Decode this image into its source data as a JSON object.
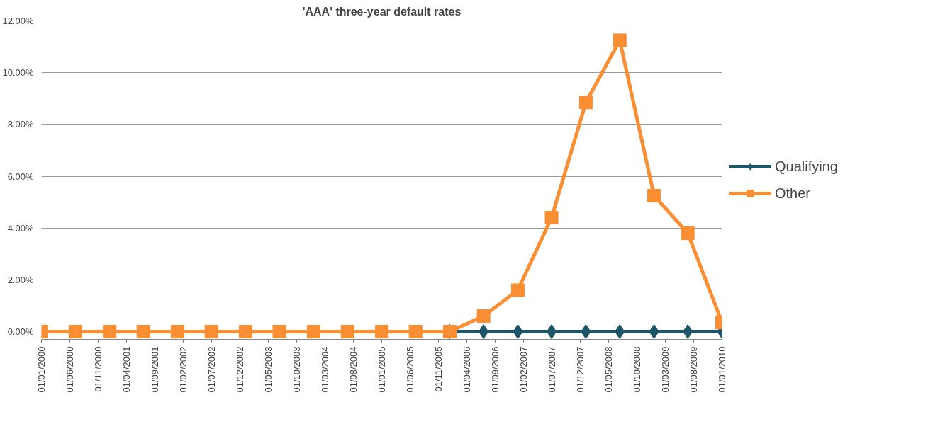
{
  "chart_data": {
    "type": "line",
    "title": "'AAA' three-year default rates",
    "x": [
      "2000-01-01",
      "2000-07-01",
      "2001-01-01",
      "2001-07-01",
      "2002-01-01",
      "2002-07-01",
      "2003-01-01",
      "2003-07-01",
      "2004-01-01",
      "2004-07-01",
      "2005-01-01",
      "2005-07-01",
      "2006-01-01",
      "2006-07-01",
      "2007-01-01",
      "2007-07-01",
      "2008-01-01",
      "2008-07-01",
      "2009-01-01",
      "2009-07-01",
      "2010-01-01"
    ],
    "series": [
      {
        "name": "Qualifying",
        "color": "#1f5568",
        "marker": "diamond",
        "values": [
          null,
          null,
          null,
          null,
          null,
          null,
          null,
          null,
          null,
          null,
          null,
          null,
          0,
          0,
          0,
          0,
          0,
          0,
          0,
          0,
          0
        ]
      },
      {
        "name": "Other",
        "color": "#f98e32",
        "marker": "square",
        "values": [
          0,
          0,
          0,
          0,
          0,
          0,
          0,
          0,
          0,
          0,
          0,
          0,
          0,
          0.6,
          1.6,
          4.4,
          8.85,
          11.25,
          5.25,
          3.8,
          0.35
        ]
      }
    ],
    "xlim": [
      "2000-01-01",
      "2010-01-01"
    ],
    "xticks": [
      {
        "value": "2000-01-01",
        "label": "01/01/2000"
      },
      {
        "value": "2000-06-01",
        "label": "01/06/2000"
      },
      {
        "value": "2000-11-01",
        "label": "01/11/2000"
      },
      {
        "value": "2001-04-01",
        "label": "01/04/2001"
      },
      {
        "value": "2001-09-01",
        "label": "01/09/2001"
      },
      {
        "value": "2002-02-01",
        "label": "01/02/2002"
      },
      {
        "value": "2002-07-01",
        "label": "01/07/2002"
      },
      {
        "value": "2002-12-01",
        "label": "01/12/2002"
      },
      {
        "value": "2003-05-01",
        "label": "01/05/2003"
      },
      {
        "value": "2003-10-01",
        "label": "01/10/2003"
      },
      {
        "value": "2004-03-01",
        "label": "01/03/2004"
      },
      {
        "value": "2004-08-01",
        "label": "01/08/2004"
      },
      {
        "value": "2005-01-01",
        "label": "01/01/2005"
      },
      {
        "value": "2005-06-01",
        "label": "01/06/2005"
      },
      {
        "value": "2005-11-01",
        "label": "01/11/2005"
      },
      {
        "value": "2006-04-01",
        "label": "01/04/2006"
      },
      {
        "value": "2006-09-01",
        "label": "01/09/2006"
      },
      {
        "value": "2007-02-01",
        "label": "01/02/2007"
      },
      {
        "value": "2007-07-01",
        "label": "01/07/2007"
      },
      {
        "value": "2007-12-01",
        "label": "01/12/2007"
      },
      {
        "value": "2008-05-01",
        "label": "01/05/2008"
      },
      {
        "value": "2008-10-01",
        "label": "01/10/2008"
      },
      {
        "value": "2009-03-01",
        "label": "01/03/2009"
      },
      {
        "value": "2009-08-01",
        "label": "01/08/2009"
      },
      {
        "value": "2010-01-01",
        "label": "01/01/2010"
      }
    ],
    "ylim": [
      -0.3,
      12
    ],
    "yticks": [
      {
        "value": 0,
        "label": "0.00%"
      },
      {
        "value": 2,
        "label": "2.00%"
      },
      {
        "value": 4,
        "label": "4.00%"
      },
      {
        "value": 6,
        "label": "6.00%"
      },
      {
        "value": 8,
        "label": "8.00%"
      },
      {
        "value": 10,
        "label": "10.00%"
      },
      {
        "value": 12,
        "label": "12.00%"
      }
    ],
    "grid": "y",
    "legend": "right",
    "line_style": "solid"
  }
}
